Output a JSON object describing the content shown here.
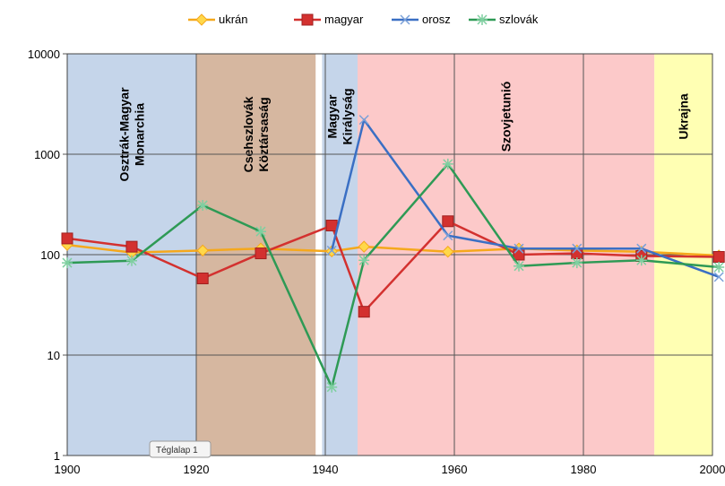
{
  "chart_data": {
    "type": "line",
    "title": "",
    "xlabel": "",
    "ylabel": "",
    "y_scale": "log",
    "xlim": [
      1900,
      2000
    ],
    "ylim": [
      1,
      10000
    ],
    "x_ticks": [
      1900,
      1920,
      1940,
      1960,
      1980,
      2000
    ],
    "y_ticks": [
      1,
      10,
      100,
      1000,
      10000
    ],
    "grid": true,
    "legend": "top",
    "eras": [
      {
        "lines": [
          "Osztrák-Magyar",
          "Monarchia"
        ],
        "from": 1900,
        "to": 1920,
        "color": "#c5d5ea"
      },
      {
        "lines": [
          "Csehszlovák",
          "Köztársaság"
        ],
        "from": 1920,
        "to": 1938.5,
        "color": "#d6b7a0"
      },
      {
        "lines": [
          "Magyar",
          "Királyság"
        ],
        "from": 1939.5,
        "to": 1945,
        "color": "#c5d5ea"
      },
      {
        "lines": [
          "Szovjetunió"
        ],
        "from": 1945,
        "to": 1991,
        "color": "#fcc9c9"
      },
      {
        "lines": [
          "Ukrajna"
        ],
        "from": 1991,
        "to": 2000,
        "color": "#ffffb3"
      }
    ],
    "annotation": "Téglalap 1",
    "series": [
      {
        "name": "ukrán",
        "color": "#f5a81c",
        "marker": "diamond",
        "x": [
          1900,
          1910,
          1921,
          1930,
          1941,
          1946,
          1959,
          1970,
          1979,
          1989,
          2001
        ],
        "y": [
          125,
          105,
          110,
          115,
          108,
          120,
          107,
          115,
          110,
          107,
          98
        ]
      },
      {
        "name": "magyar",
        "color": "#d3312f",
        "marker": "square",
        "x": [
          1900,
          1910,
          1921,
          1930,
          1941,
          1946,
          1959,
          1970,
          1979,
          1989,
          2001
        ],
        "y": [
          145,
          120,
          58,
          103,
          195,
          27,
          215,
          100,
          103,
          97,
          95
        ]
      },
      {
        "name": "orosz",
        "color": "#3a6fc4",
        "marker": "x",
        "x": [
          1941,
          1946,
          1959,
          1970,
          1979,
          1989,
          2001
        ],
        "y": [
          110,
          2200,
          155,
          115,
          115,
          115,
          60
        ]
      },
      {
        "name": "szlovák",
        "color": "#2e9a55",
        "marker": "star",
        "x": [
          1900,
          1910,
          1921,
          1930,
          1941,
          1946,
          1959,
          1970,
          1979,
          1989,
          2001
        ],
        "y": [
          83,
          87,
          310,
          170,
          4.8,
          88,
          800,
          77,
          83,
          88,
          75
        ]
      }
    ]
  }
}
